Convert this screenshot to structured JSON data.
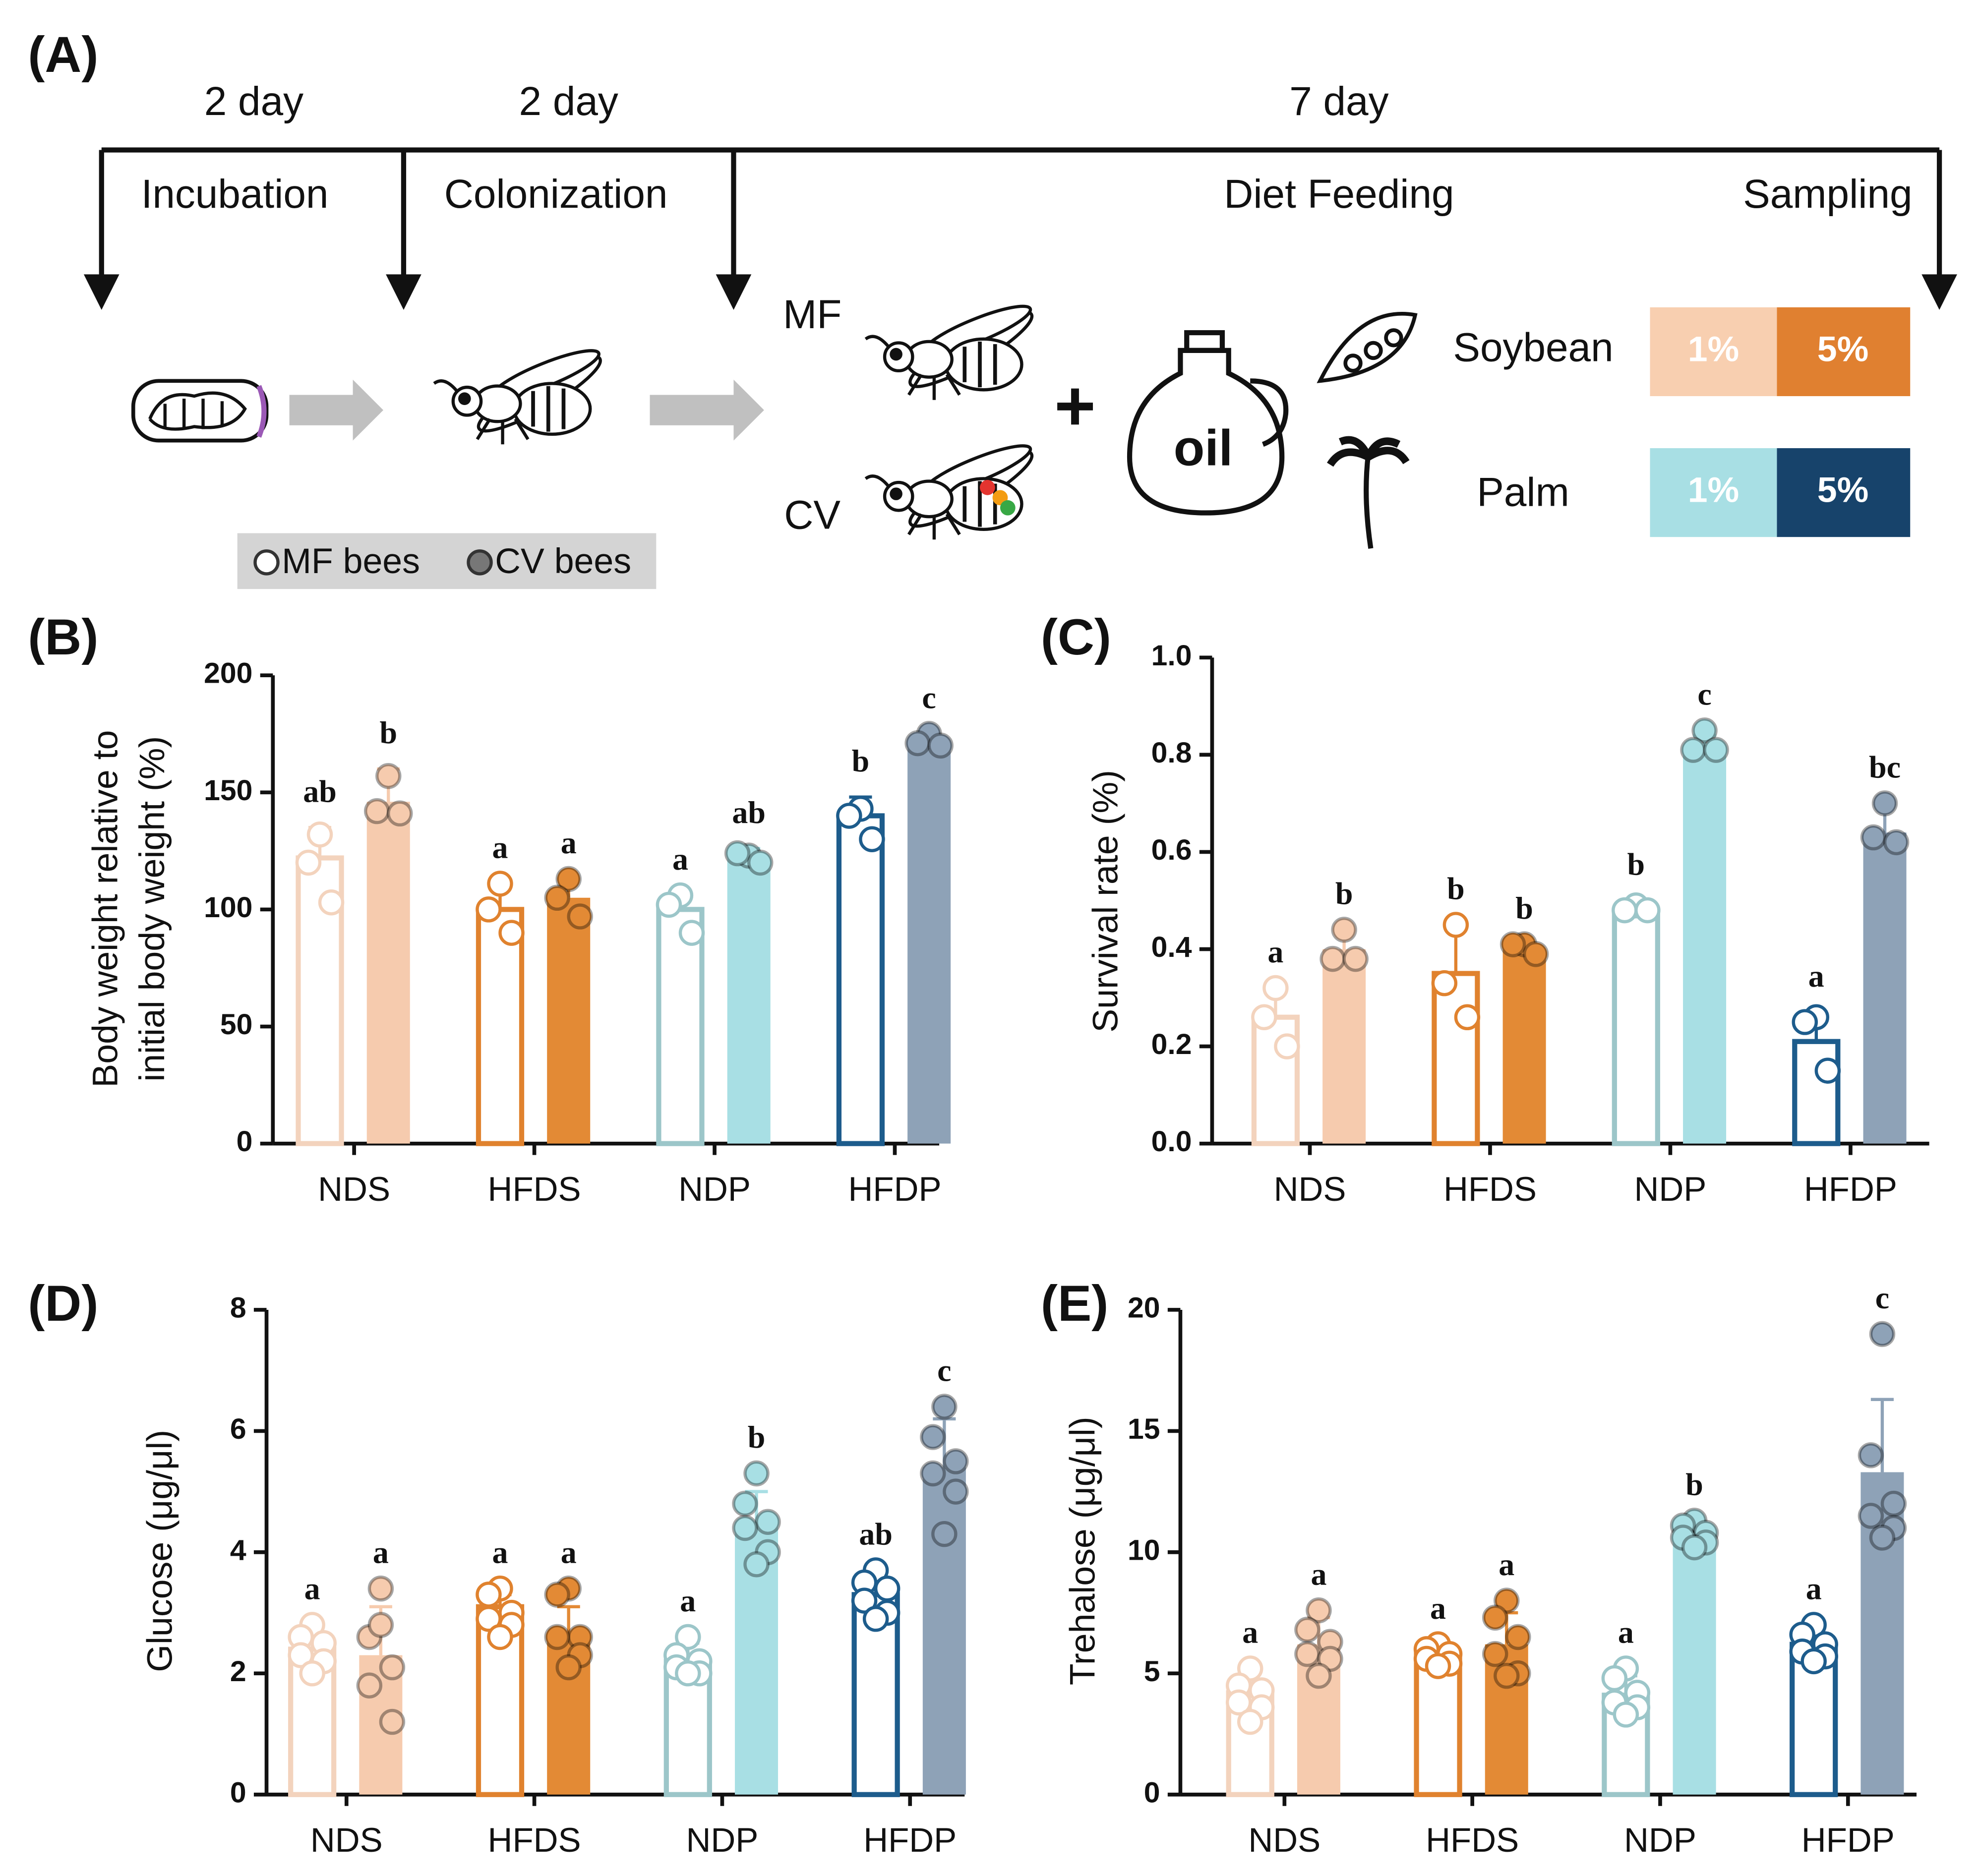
{
  "diagram": {
    "label": "(A)",
    "durations": [
      "2 day",
      "2 day",
      "7 day"
    ],
    "stages": [
      "Incubation",
      "Colonization",
      "Diet Feeding",
      "Sampling"
    ],
    "groups": [
      "MF",
      "CV"
    ],
    "oil": "oil",
    "sources": [
      "Soybean",
      "Palm"
    ],
    "doses": [
      [
        "1%",
        "5%"
      ],
      [
        "1%",
        "5%"
      ]
    ]
  },
  "chart_data": [
    {
      "type": "bar",
      "label": "(B)",
      "ylabel": [
        "Body weight relative to",
        "initial body weight (%)"
      ],
      "categories": [
        "NDS",
        "HFDS",
        "NDP",
        "HFDP"
      ],
      "ylim": [
        0,
        200
      ],
      "yticks": [
        0,
        50,
        100,
        150,
        200
      ],
      "series": [
        {
          "name": "MF bees",
          "fill": "#ffffff",
          "colors": [
            "#f3d3bd",
            "#e0822e",
            "#9cc6c9",
            "#1d5c8c"
          ],
          "values": [
            122,
            100,
            100,
            140
          ],
          "errors": [
            13,
            11,
            6,
            8
          ],
          "points": [
            [
              132,
              120,
              103
            ],
            [
              111,
              100,
              90
            ],
            [
              106,
              102,
              90
            ],
            [
              143,
              140,
              130
            ]
          ],
          "annotations": [
            "ab",
            "a",
            "a",
            "b"
          ]
        },
        {
          "name": "CV bees",
          "colors": [
            "#f6cbae",
            "#e38a35",
            "#a8dfe4",
            "#8ea2b7"
          ],
          "values": [
            146,
            105,
            122,
            172
          ],
          "errors": [
            14,
            8,
            4,
            3
          ],
          "points": [
            [
              157,
              142,
              141
            ],
            [
              113,
              105,
              97
            ],
            [
              123,
              124,
              120
            ],
            [
              175,
              171,
              170
            ]
          ],
          "annotations": [
            "b",
            "a",
            "ab",
            "c"
          ]
        }
      ]
    },
    {
      "type": "bar",
      "label": "(C)",
      "ylabel": [
        "Survival rate (%)"
      ],
      "categories": [
        "NDS",
        "HFDS",
        "NDP",
        "HFDP"
      ],
      "ylim": [
        0,
        1
      ],
      "yticks": [
        {
          "value": 0,
          "label": "0.0"
        },
        {
          "value": 0.2,
          "label": "0.2"
        },
        {
          "value": 0.4,
          "label": "0.4"
        },
        {
          "value": 0.6,
          "label": "0.6"
        },
        {
          "value": 0.8,
          "label": "0.8"
        },
        {
          "value": 1,
          "label": "1.0"
        }
      ],
      "series": [
        {
          "name": "MF bees",
          "fill": "#ffffff",
          "colors": [
            "#f3d3bd",
            "#e0822e",
            "#9cc6c9",
            "#1d5c8c"
          ],
          "values": [
            0.26,
            0.35,
            0.48,
            0.21
          ],
          "errors": [
            0.06,
            0.1,
            0.02,
            0.06
          ],
          "points": [
            [
              0.32,
              0.26,
              0.2
            ],
            [
              0.45,
              0.33,
              0.26
            ],
            [
              0.49,
              0.48,
              0.48
            ],
            [
              0.26,
              0.25,
              0.15
            ]
          ],
          "annotations": [
            "a",
            "b",
            "b",
            "a"
          ]
        },
        {
          "name": "CV bees",
          "colors": [
            "#f6cbae",
            "#e38a35",
            "#a8dfe4",
            "#8ea2b7"
          ],
          "values": [
            0.4,
            0.4,
            0.82,
            0.64
          ],
          "errors": [
            0.04,
            0.01,
            0.02,
            0.06
          ],
          "points": [
            [
              0.44,
              0.38,
              0.38
            ],
            [
              0.41,
              0.41,
              0.39
            ],
            [
              0.85,
              0.81,
              0.81
            ],
            [
              0.7,
              0.63,
              0.62
            ]
          ],
          "annotations": [
            "b",
            "b",
            "c",
            "bc"
          ]
        }
      ]
    },
    {
      "type": "bar",
      "label": "(D)",
      "ylabel": [
        "Glucose  (μg/μl)"
      ],
      "categories": [
        "NDS",
        "HFDS",
        "NDP",
        "HFDP"
      ],
      "ylim": [
        0,
        8
      ],
      "yticks": [
        0,
        2,
        4,
        6,
        8
      ],
      "series": [
        {
          "name": "MF bees",
          "fill": "#ffffff",
          "colors": [
            "#f3d3bd",
            "#e0822e",
            "#9cc6c9",
            "#1d5c8c"
          ],
          "values": [
            2.4,
            3.1,
            2.2,
            3.3
          ],
          "errors": [
            0.4,
            0.2,
            0.3,
            0.3
          ],
          "points": [
            [
              2.8,
              2.6,
              2.5,
              2.3,
              2.2,
              2.0
            ],
            [
              3.4,
              3.3,
              3.0,
              2.9,
              2.8,
              2.6
            ],
            [
              2.6,
              2.3,
              2.2,
              2.1,
              2.0,
              2.0
            ],
            [
              3.7,
              3.5,
              3.4,
              3.2,
              3.0,
              2.9
            ]
          ],
          "annotations": [
            "a",
            "a",
            "a",
            "ab"
          ]
        },
        {
          "name": "CV bees",
          "colors": [
            "#f6cbae",
            "#e38a35",
            "#a8dfe4",
            "#8ea2b7"
          ],
          "values": [
            2.3,
            2.6,
            4.5,
            5.4
          ],
          "errors": [
            0.8,
            0.5,
            0.5,
            0.8
          ],
          "points": [
            [
              3.4,
              2.6,
              2.1,
              1.8,
              1.2,
              2.8
            ],
            [
              3.4,
              3.3,
              2.6,
              2.6,
              2.3,
              2.1
            ],
            [
              5.3,
              4.8,
              4.5,
              4.4,
              4.0,
              3.8
            ],
            [
              6.4,
              5.9,
              5.5,
              5.3,
              5.0,
              4.3
            ]
          ],
          "annotations": [
            "a",
            "a",
            "b",
            "c"
          ]
        }
      ]
    },
    {
      "type": "bar",
      "label": "(E)",
      "ylabel": [
        "Trehalose  (μg/μl)"
      ],
      "categories": [
        "NDS",
        "HFDS",
        "NDP",
        "HFDP"
      ],
      "ylim": [
        0,
        20
      ],
      "yticks": [
        0,
        5,
        10,
        15,
        20
      ],
      "series": [
        {
          "name": "MF bees",
          "fill": "#ffffff",
          "colors": [
            "#f3d3bd",
            "#e0822e",
            "#9cc6c9",
            "#1d5c8c"
          ],
          "values": [
            4.2,
            5.8,
            4.1,
            6.2
          ],
          "errors": [
            0.8,
            0.4,
            0.8,
            0.6
          ],
          "points": [
            [
              5.2,
              4.5,
              4.3,
              3.8,
              3.6,
              3.0
            ],
            [
              6.2,
              6.0,
              5.8,
              5.6,
              5.4,
              5.3
            ],
            [
              5.2,
              4.8,
              4.2,
              3.8,
              3.6,
              3.3
            ],
            [
              7.0,
              6.6,
              6.2,
              5.9,
              5.7,
              5.5
            ]
          ],
          "annotations": [
            "a",
            "a",
            "a",
            "a"
          ]
        },
        {
          "name": "CV bees",
          "colors": [
            "#f6cbae",
            "#e38a35",
            "#a8dfe4",
            "#8ea2b7"
          ],
          "values": [
            6.2,
            6.2,
            10.8,
            13.3
          ],
          "errors": [
            1.1,
            1.3,
            0.4,
            3.0
          ],
          "points": [
            [
              7.6,
              6.8,
              6.3,
              5.8,
              5.6,
              4.9
            ],
            [
              8.0,
              7.3,
              6.5,
              5.8,
              5.0,
              4.9
            ],
            [
              11.3,
              11.1,
              10.8,
              10.6,
              10.4,
              10.2
            ],
            [
              19.0,
              14.0,
              12.0,
              11.5,
              11.0,
              10.6
            ]
          ],
          "annotations": [
            "a",
            "a",
            "b",
            "c"
          ]
        }
      ]
    }
  ]
}
